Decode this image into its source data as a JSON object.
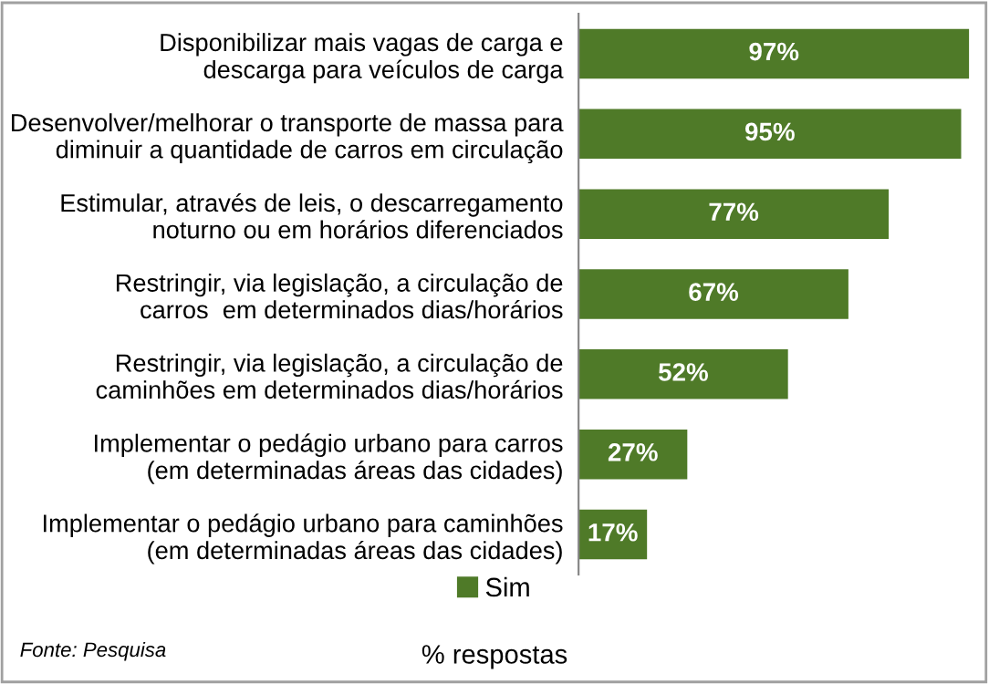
{
  "chart_data": {
    "type": "bar",
    "orientation": "horizontal",
    "xlabel": "% respostas",
    "categories": [
      "Disponibilizar mais vagas de carga e\ndescarga para veículos de carga",
      "Desenvolver/melhorar o transporte de massa para\ndiminuir a quantidade de carros em circulação",
      "Estimular, através de leis, o descarregamento\nnoturno ou em horários diferenciados",
      "Restringir, via legislação, a circulação de\ncarros  em determinados dias/horários",
      "Restringir, via legislação, a circulação de\ncaminhões em determinados dias/horários",
      "Implementar o pedágio urbano para carros\n(em determinadas áreas das cidades)",
      "Implementar o pedágio urbano para caminhões\n(em determinadas áreas das cidades)"
    ],
    "series": [
      {
        "name": "Sim",
        "color": "#4f7a28",
        "values": [
          97,
          95,
          77,
          67,
          52,
          27,
          17
        ],
        "value_labels": [
          "97%",
          "95%",
          "77%",
          "67%",
          "52%",
          "27%",
          "17%"
        ]
      }
    ],
    "legend": "bottom",
    "annotations": [
      "Fonte: Pesquisa"
    ]
  }
}
